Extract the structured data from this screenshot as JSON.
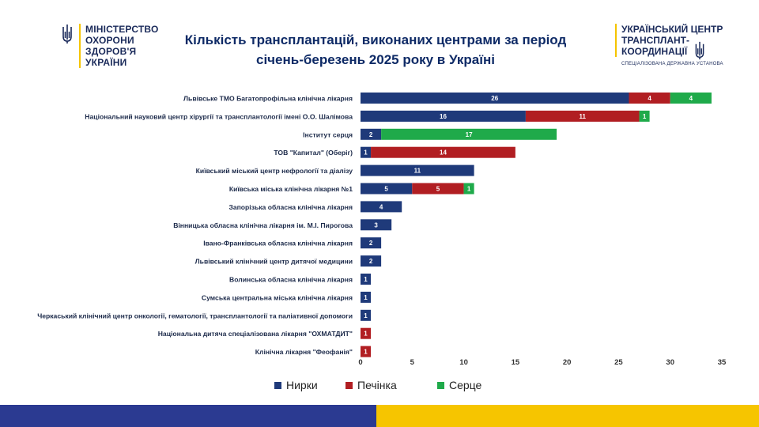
{
  "logo_left": {
    "lines": [
      "МІНІСТЕРСТВО",
      "ОХОРОНИ",
      "ЗДОРОВ'Я",
      "УКРАЇНИ"
    ]
  },
  "logo_right": {
    "lines": [
      "УКРАЇНСЬКИЙ ЦЕНТР",
      "ТРАНСПЛАНТ-",
      "КООРДИНАЦІЇ"
    ],
    "subtitle": "СПЕЦІАЛІЗОВАНА ДЕРЖАВНА УСТАНОВА"
  },
  "colors": {
    "kidney": "#1f3a7a",
    "liver": "#b11e22",
    "heart": "#1faa4a",
    "brand_blue": "#2b3a91",
    "brand_yellow": "#f6c500"
  },
  "chart_data": {
    "type": "bar",
    "orientation": "horizontal",
    "stacked": true,
    "title": "Кількість трансплантацій, виконаних центрами за період січень-березень 2025 року в Україні",
    "title_lines": [
      "Кількість трансплантацій, виконаних центрами за період",
      "січень-березень 2025 року в Україні"
    ],
    "categories": [
      "Львівське ТМО Багатопрофільна клінічна лікарня",
      "Національний науковий центр хірургії та трансплантології імені О.О. Шалімова",
      "Інститут серця",
      "ТОВ \"Капитал\" (Оберіг)",
      "Київський міський центр нефрології та діалізу",
      "Київська міська клінічна лікарня №1",
      "Запорізька обласна клінічна лікарня",
      "Вінницька обласна клінічна лікарня ім. М.І. Пирогова",
      "Івано-Франківська обласна клінічна лікарня",
      "Львівський клінічний центр дитячої медицини",
      "Волинська обласна клінічна лікарня",
      "Сумська центральна міська клінічна лікарня",
      "Черкаський клінічний центр онкології, гематології, трансплантології та паліативної допомоги",
      "Національна дитяча спеціалізована лікарня \"ОХМАТДИТ\"",
      "Клінічна лікарня \"Феофанія\""
    ],
    "series": [
      {
        "name": "Нирки",
        "values": [
          26,
          16,
          2,
          1,
          11,
          5,
          4,
          3,
          2,
          2,
          1,
          1,
          1,
          0,
          0
        ]
      },
      {
        "name": "Печінка",
        "values": [
          4,
          11,
          0,
          14,
          0,
          5,
          0,
          0,
          0,
          0,
          0,
          0,
          0,
          1,
          1
        ]
      },
      {
        "name": "Серце",
        "values": [
          4,
          1,
          17,
          0,
          0,
          1,
          0,
          0,
          0,
          0,
          0,
          0,
          0,
          0,
          0
        ]
      }
    ],
    "xlim": [
      0,
      35
    ],
    "xticks": [
      0,
      5,
      10,
      15,
      20,
      25,
      30,
      35
    ],
    "grid": false,
    "legend_position": "bottom"
  }
}
